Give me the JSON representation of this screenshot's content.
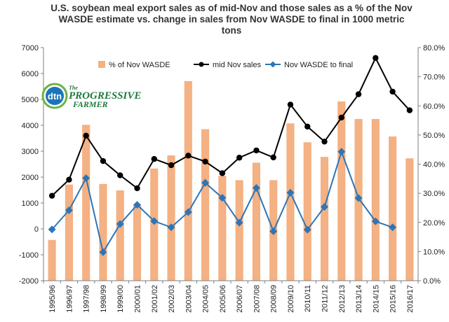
{
  "chart_data": {
    "type": "bar",
    "title": "U.S. soybean meal export sales as of mid-Nov and those sales as a % of the Nov WASDE estimate vs. change in sales from Nov WASDE to final in 1000 metric tons",
    "title_lines": [
      "U.S. soybean meal export sales as of mid-Nov and those sales as a % of the Nov",
      "WASDE  estimate vs. change in sales from Nov WASDE to final in 1000 metric",
      "tons"
    ],
    "categories": [
      "1995/96",
      "1996/97",
      "1997/98",
      "1998/99",
      "1999/00",
      "2000/01",
      "2001/02",
      "2002/03",
      "2003/04",
      "2004/05",
      "2005/06",
      "2006/07",
      "2007/08",
      "2008/09",
      "2009/10",
      "2010/11",
      "2011/12",
      "2012/13",
      "2013/14",
      "2014/15",
      "2015/16",
      "2016/17"
    ],
    "series": [
      {
        "name": "% of Nov WASDE",
        "kind": "bar",
        "axis": "right",
        "color": "#f4b183",
        "values": [
          0.14,
          0.33,
          0.535,
          0.332,
          0.31,
          0.26,
          0.385,
          0.43,
          0.685,
          0.52,
          0.36,
          0.345,
          0.405,
          0.345,
          0.54,
          0.475,
          0.425,
          0.615,
          0.555,
          0.555,
          0.495,
          0.42
        ]
      },
      {
        "name": "mid Nov sales",
        "kind": "line",
        "axis": "left",
        "color": "#000000",
        "values": [
          1280,
          1900,
          3600,
          2620,
          2070,
          1570,
          2700,
          2460,
          2830,
          2600,
          2150,
          2750,
          3030,
          2760,
          4800,
          3950,
          3370,
          4300,
          5200,
          6600,
          5300,
          4580
        ]
      },
      {
        "name": "Nov WASDE to final",
        "kind": "line",
        "axis": "left",
        "color": "#2e75b6",
        "values": [
          -20,
          720,
          1960,
          -900,
          190,
          930,
          300,
          60,
          650,
          1780,
          1200,
          240,
          1580,
          -90,
          1400,
          -30,
          850,
          2980,
          1190,
          290,
          60,
          null
        ]
      }
    ],
    "y_left": {
      "min": -2000,
      "max": 7000,
      "step": 1000,
      "ticks": [
        "-2000",
        "-1000",
        "0",
        "1000",
        "2000",
        "3000",
        "4000",
        "5000",
        "6000",
        "7000"
      ]
    },
    "y_right": {
      "min": 0,
      "max": 0.8,
      "step": 0.1,
      "ticks": [
        "0.0%",
        "10.0%",
        "20.0%",
        "30.0%",
        "40.0%",
        "50.0%",
        "60.0%",
        "70.0%",
        "80.0%"
      ]
    },
    "legend_placement": "top",
    "grid": false,
    "xlabel": "",
    "ylabel": ""
  },
  "logo": {
    "badge": "dtn",
    "name_line1": "PROGRESSIVE",
    "name_line2": "FARMER",
    "name_prefix": "The",
    "colors": {
      "green": "#1c7a3c",
      "badge_ring": "#6cb33f",
      "badge_fill": "#1b75bb"
    }
  }
}
